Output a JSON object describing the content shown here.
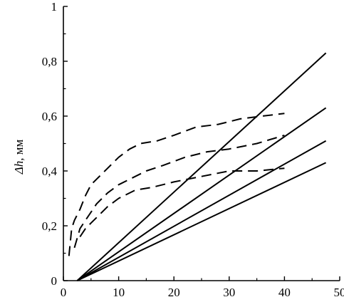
{
  "chart_data": {
    "type": "line",
    "ylabel_symbol": "Δh",
    "ylabel_unit": ", мм",
    "xlabel": "",
    "xlim": [
      0,
      50
    ],
    "ylim": [
      0,
      1
    ],
    "grid": false,
    "x_ticks": [
      0,
      10,
      20,
      30,
      40,
      50
    ],
    "x_tick_labels": [
      "0",
      "10",
      "20",
      "30",
      "40",
      "50"
    ],
    "y_ticks": [
      0,
      0.2,
      0.4,
      0.6,
      0.8,
      1
    ],
    "y_tick_labels": [
      "0",
      "0,2",
      "0,4",
      "0,6",
      "0,8",
      "1"
    ],
    "series": [
      {
        "style": "solid",
        "x": [
          2.5,
          47.5
        ],
        "y": [
          0,
          0.83
        ]
      },
      {
        "style": "solid",
        "x": [
          2.5,
          47.5
        ],
        "y": [
          0,
          0.63
        ]
      },
      {
        "style": "solid",
        "x": [
          2.5,
          47.5
        ],
        "y": [
          0,
          0.51
        ]
      },
      {
        "style": "solid",
        "x": [
          2.5,
          47.5
        ],
        "y": [
          0,
          0.43
        ]
      },
      {
        "style": "dashed",
        "x": [
          1,
          1.5,
          2,
          3,
          4,
          5,
          6,
          8,
          10,
          12,
          14,
          17,
          20,
          24,
          28,
          32,
          36,
          40
        ],
        "y": [
          0.09,
          0.19,
          0.22,
          0.26,
          0.31,
          0.35,
          0.37,
          0.41,
          0.45,
          0.48,
          0.5,
          0.51,
          0.53,
          0.56,
          0.57,
          0.59,
          0.6,
          0.61
        ]
      },
      {
        "style": "dashed",
        "x": [
          2,
          3,
          4,
          5,
          6,
          8,
          10,
          12,
          15,
          18,
          22,
          26,
          30,
          35,
          40
        ],
        "y": [
          0.12,
          0.19,
          0.22,
          0.25,
          0.28,
          0.32,
          0.35,
          0.37,
          0.4,
          0.42,
          0.45,
          0.47,
          0.48,
          0.5,
          0.53
        ]
      },
      {
        "style": "dashed",
        "x": [
          3,
          4,
          5,
          6,
          8,
          10,
          13,
          16,
          20,
          25,
          30,
          35,
          40
        ],
        "y": [
          0.16,
          0.19,
          0.21,
          0.23,
          0.27,
          0.3,
          0.33,
          0.34,
          0.36,
          0.38,
          0.4,
          0.4,
          0.41
        ]
      }
    ]
  }
}
